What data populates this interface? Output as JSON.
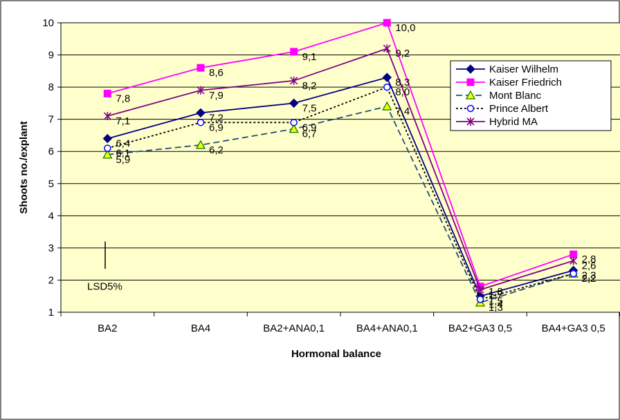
{
  "chart_data": {
    "type": "line",
    "title": "",
    "xlabel": "Hormonal balance",
    "ylabel": "Shoots no./explant",
    "ylim": [
      1,
      10
    ],
    "yticks": [
      1,
      2,
      3,
      4,
      5,
      6,
      7,
      8,
      9,
      10
    ],
    "grid": "horizontal",
    "legend_position": "right",
    "plot_background": "#FFFFCC",
    "categories": [
      "BA2",
      "BA4",
      "BA2+ANA0,1",
      "BA4+ANA0,1",
      "BA2+GA3 0,5",
      "BA4+GA3 0,5"
    ],
    "series": [
      {
        "name": "Kaiser Wilhelm",
        "color": "#000080",
        "dash": "solid",
        "marker": "diamond",
        "values": [
          6.4,
          7.2,
          7.5,
          8.3,
          1.5,
          2.3
        ],
        "labels": [
          "6,4",
          "7,2",
          "7,5",
          "8,3",
          "1,5",
          "2,3"
        ]
      },
      {
        "name": "Kaiser Friedrich",
        "color": "#FF00FF",
        "dash": "solid",
        "marker": "square",
        "values": [
          7.8,
          8.6,
          9.1,
          10.0,
          1.8,
          2.8
        ],
        "labels": [
          "7,8",
          "8,6",
          "9,1",
          "10,0",
          "1,8",
          "2,8"
        ]
      },
      {
        "name": "Mont Blanc",
        "color": "#1F4E79",
        "dash": "dashed",
        "marker": "triangle",
        "values": [
          5.9,
          6.2,
          6.7,
          7.4,
          1.3,
          2.2
        ],
        "labels": [
          "5,9",
          "6,2",
          "6,7",
          "7,4",
          "1,3",
          "2,2"
        ]
      },
      {
        "name": "Prince Albert",
        "color": "#000000",
        "dash": "dotted",
        "marker": "circle",
        "values": [
          6.1,
          6.9,
          6.9,
          8.0,
          1.4,
          2.2
        ],
        "labels": [
          "6,1",
          "6,9",
          "6,9",
          "8,0",
          "1,4",
          "2,2"
        ]
      },
      {
        "name": "Hybrid MA",
        "color": "#800080",
        "dash": "solid",
        "marker": "star",
        "values": [
          7.1,
          7.9,
          8.2,
          9.2,
          1.7,
          2.6
        ],
        "labels": [
          "7,1",
          "7,9",
          "8,2",
          "9,2",
          "1,7",
          "2,6"
        ]
      }
    ],
    "annotation": {
      "label": "LSD5%",
      "range": [
        2.35,
        3.2
      ]
    }
  }
}
